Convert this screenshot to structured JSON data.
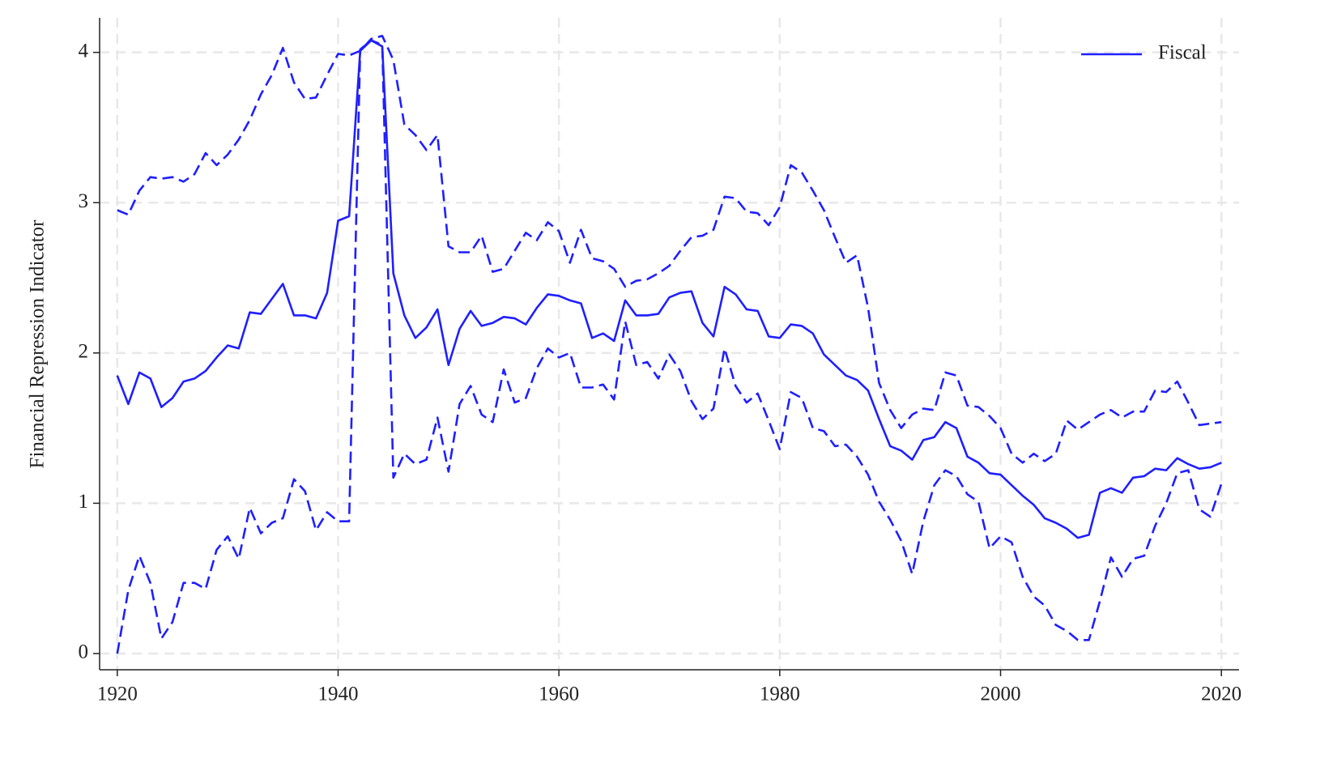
{
  "chart_data": {
    "type": "line",
    "ylabel": "Financial Repression Indicator",
    "x": [
      1920,
      1921,
      1922,
      1923,
      1924,
      1925,
      1926,
      1927,
      1928,
      1929,
      1930,
      1931,
      1932,
      1933,
      1934,
      1935,
      1936,
      1937,
      1938,
      1939,
      1940,
      1941,
      1942,
      1943,
      1944,
      1945,
      1946,
      1947,
      1948,
      1949,
      1950,
      1951,
      1952,
      1953,
      1954,
      1955,
      1956,
      1957,
      1958,
      1959,
      1960,
      1961,
      1962,
      1963,
      1964,
      1965,
      1966,
      1967,
      1968,
      1969,
      1970,
      1971,
      1972,
      1973,
      1974,
      1975,
      1976,
      1977,
      1978,
      1979,
      1980,
      1981,
      1982,
      1983,
      1984,
      1985,
      1986,
      1987,
      1988,
      1989,
      1990,
      1991,
      1992,
      1993,
      1994,
      1995,
      1996,
      1997,
      1998,
      1999,
      2000,
      2001,
      2002,
      2003,
      2004,
      2005,
      2006,
      2007,
      2008,
      2009,
      2010,
      2011,
      2012,
      2013,
      2014,
      2015,
      2016,
      2017,
      2018,
      2019,
      2020
    ],
    "series": [
      {
        "name": "Fiscal",
        "color": "#1f1fff",
        "style": "solid",
        "values": [
          1.85,
          1.66,
          1.87,
          1.83,
          1.64,
          1.7,
          1.81,
          1.83,
          1.88,
          1.97,
          2.05,
          2.03,
          2.27,
          2.26,
          2.36,
          2.46,
          2.25,
          2.25,
          2.23,
          2.4,
          2.88,
          2.91,
          4.01,
          4.08,
          4.04,
          2.53,
          2.25,
          2.1,
          2.17,
          2.29,
          1.92,
          2.16,
          2.28,
          2.18,
          2.2,
          2.24,
          2.23,
          2.19,
          2.3,
          2.39,
          2.38,
          2.35,
          2.33,
          2.1,
          2.13,
          2.08,
          2.35,
          2.25,
          2.25,
          2.26,
          2.37,
          2.4,
          2.41,
          2.2,
          2.11,
          2.44,
          2.39,
          2.29,
          2.28,
          2.11,
          2.1,
          2.19,
          2.18,
          2.13,
          1.99,
          1.92,
          1.85,
          1.82,
          1.75,
          1.56,
          1.38,
          1.35,
          1.29,
          1.42,
          1.44,
          1.54,
          1.5,
          1.31,
          1.27,
          1.2,
          1.19,
          1.12,
          1.05,
          0.99,
          0.9,
          0.87,
          0.83,
          0.77,
          0.79,
          1.07,
          1.1,
          1.07,
          1.17,
          1.18,
          1.23,
          1.22,
          1.3,
          1.26,
          1.23,
          1.24,
          1.27
        ]
      },
      {
        "color": "#1f1fff",
        "style": "dashed",
        "values": [
          2.95,
          2.92,
          3.08,
          3.17,
          3.16,
          3.17,
          3.14,
          3.19,
          3.33,
          3.25,
          3.32,
          3.42,
          3.55,
          3.72,
          3.85,
          4.03,
          3.8,
          3.69,
          3.7,
          3.85,
          3.99,
          3.98,
          4.01,
          4.09,
          4.11,
          3.95,
          3.52,
          3.45,
          3.35,
          3.45,
          2.71,
          2.67,
          2.67,
          2.78,
          2.54,
          2.56,
          2.68,
          2.8,
          2.75,
          2.87,
          2.81,
          2.6,
          2.82,
          2.63,
          2.61,
          2.56,
          2.44,
          2.48,
          2.49,
          2.53,
          2.58,
          2.68,
          2.77,
          2.78,
          2.82,
          3.04,
          3.03,
          2.94,
          2.93,
          2.85,
          2.97,
          3.25,
          3.2,
          3.08,
          2.95,
          2.77,
          2.6,
          2.65,
          2.3,
          1.8,
          1.62,
          1.5,
          1.59,
          1.63,
          1.62,
          1.87,
          1.85,
          1.65,
          1.64,
          1.58,
          1.5,
          1.33,
          1.27,
          1.33,
          1.28,
          1.33,
          1.55,
          1.49,
          1.54,
          1.59,
          1.62,
          1.57,
          1.61,
          1.61,
          1.75,
          1.74,
          1.81,
          1.67,
          1.52,
          1.53,
          1.54
        ]
      },
      {
        "color": "#1f1fff",
        "style": "dashed",
        "values": [
          0.0,
          0.42,
          0.65,
          0.47,
          0.1,
          0.21,
          0.47,
          0.47,
          0.43,
          0.69,
          0.78,
          0.63,
          0.97,
          0.8,
          0.87,
          0.9,
          1.16,
          1.08,
          0.82,
          0.94,
          0.88,
          0.88,
          4.02,
          4.08,
          4.05,
          1.17,
          1.33,
          1.26,
          1.29,
          1.57,
          1.21,
          1.66,
          1.78,
          1.59,
          1.54,
          1.89,
          1.67,
          1.7,
          1.9,
          2.03,
          1.97,
          2.0,
          1.77,
          1.77,
          1.79,
          1.69,
          2.21,
          1.92,
          1.94,
          1.83,
          1.99,
          1.88,
          1.68,
          1.56,
          1.63,
          2.03,
          1.78,
          1.67,
          1.73,
          1.55,
          1.36,
          1.74,
          1.7,
          1.5,
          1.48,
          1.38,
          1.39,
          1.31,
          1.19,
          1.01,
          0.89,
          0.75,
          0.53,
          0.88,
          1.12,
          1.22,
          1.18,
          1.06,
          1.01,
          0.7,
          0.78,
          0.74,
          0.51,
          0.38,
          0.32,
          0.19,
          0.15,
          0.09,
          0.09,
          0.35,
          0.64,
          0.51,
          0.63,
          0.65,
          0.85,
          1.0,
          1.2,
          1.22,
          0.96,
          0.91,
          1.13
        ]
      }
    ],
    "xlim": [
      1918.4,
      2021.6
    ],
    "xticks": [
      1920,
      1940,
      1960,
      1980,
      2000,
      2020
    ],
    "ylim": [
      -0.108,
      4.23
    ],
    "yticks": [
      0,
      1,
      2,
      3,
      4
    ],
    "grid": true,
    "legend": "top-right"
  }
}
